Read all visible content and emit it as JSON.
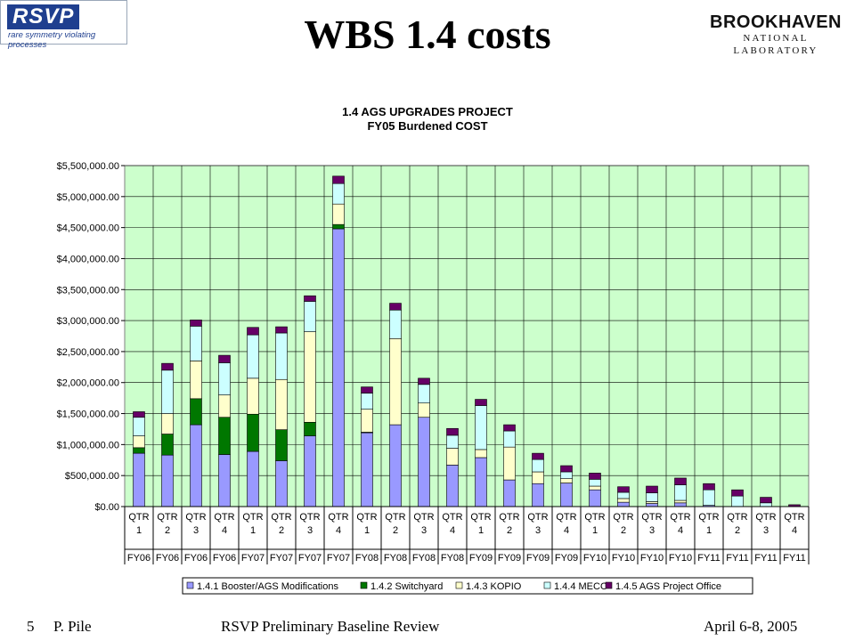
{
  "header": {
    "title": "WBS 1.4 costs",
    "logo_left_text": "RSVP",
    "logo_left_sub": "rare symmetry violating processes",
    "logo_right_line1": "BROOKHAVEN",
    "logo_right_line2": "NATIONAL LABORATORY"
  },
  "footer": {
    "slide_number": "5",
    "author": "P. Pile",
    "review": "RSVP Preliminary Baseline Review",
    "date": "April 6-8, 2005"
  },
  "chart_data": {
    "type": "bar",
    "stacked": true,
    "title_line1": "1.4 AGS UPGRADES PROJECT",
    "title_line2": "FY05 Burdened COST",
    "ylim": [
      0,
      5500000
    ],
    "yticks": [
      "$0.00",
      "$500,000.00",
      "$1,000,000.00",
      "$1,500,000.00",
      "$2,000,000.00",
      "$2,500,000.00",
      "$3,000,000.00",
      "$3,500,000.00",
      "$4,000,000.00",
      "$4,500,000.00",
      "$5,000,000.00",
      "$5,500,000.00"
    ],
    "quarters": [
      "QTR 1",
      "QTR 2",
      "QTR 3",
      "QTR 4",
      "QTR 1",
      "QTR 2",
      "QTR 3",
      "QTR 4",
      "QTR 1",
      "QTR 2",
      "QTR 3",
      "QTR 4",
      "QTR 1",
      "QTR 2",
      "QTR 3",
      "QTR 4",
      "QTR 1",
      "QTR 2",
      "QTR 3",
      "QTR 4",
      "QTR 1",
      "QTR 2",
      "QTR 3",
      "QTR 4"
    ],
    "years": [
      "FY06",
      "FY06",
      "FY06",
      "FY06",
      "FY07",
      "FY07",
      "FY07",
      "FY07",
      "FY08",
      "FY08",
      "FY08",
      "FY08",
      "FY09",
      "FY09",
      "FY09",
      "FY09",
      "FY10",
      "FY10",
      "FY10",
      "FY10",
      "FY11",
      "FY11",
      "FY11",
      "FY11"
    ],
    "grid": true,
    "legend_position": "bottom",
    "plot_background": "#ccffcc",
    "series": [
      {
        "name": "1.4.1 Booster/AGS Modifications",
        "color": "#9999ff",
        "values": [
          860000,
          830000,
          1320000,
          840000,
          890000,
          740000,
          1140000,
          4480000,
          1190000,
          1320000,
          1440000,
          670000,
          790000,
          430000,
          370000,
          380000,
          270000,
          70000,
          50000,
          60000,
          20000,
          0,
          0,
          0
        ]
      },
      {
        "name": "1.4.2 Switchyard",
        "color": "#007700",
        "values": [
          90000,
          340000,
          420000,
          600000,
          600000,
          500000,
          220000,
          70000,
          10000,
          0,
          0,
          0,
          0,
          0,
          0,
          0,
          0,
          0,
          0,
          0,
          0,
          0,
          0,
          0
        ]
      },
      {
        "name": "1.4.3 KOPIO",
        "color": "#ffffcc",
        "values": [
          190000,
          330000,
          610000,
          360000,
          580000,
          810000,
          1460000,
          330000,
          370000,
          1390000,
          230000,
          270000,
          130000,
          530000,
          190000,
          70000,
          60000,
          60000,
          30000,
          40000,
          0,
          0,
          0,
          0
        ]
      },
      {
        "name": "1.4.4 MECO",
        "color": "#ccffff",
        "values": [
          300000,
          700000,
          560000,
          520000,
          700000,
          750000,
          490000,
          330000,
          260000,
          460000,
          300000,
          210000,
          710000,
          260000,
          200000,
          110000,
          110000,
          100000,
          140000,
          250000,
          250000,
          170000,
          60000,
          0
        ]
      },
      {
        "name": "1.4.5 AGS Project Office",
        "color": "#660066",
        "values": [
          90000,
          110000,
          100000,
          120000,
          120000,
          100000,
          90000,
          120000,
          100000,
          110000,
          100000,
          110000,
          100000,
          100000,
          100000,
          100000,
          100000,
          90000,
          110000,
          110000,
          100000,
          100000,
          90000,
          30000
        ]
      }
    ]
  }
}
